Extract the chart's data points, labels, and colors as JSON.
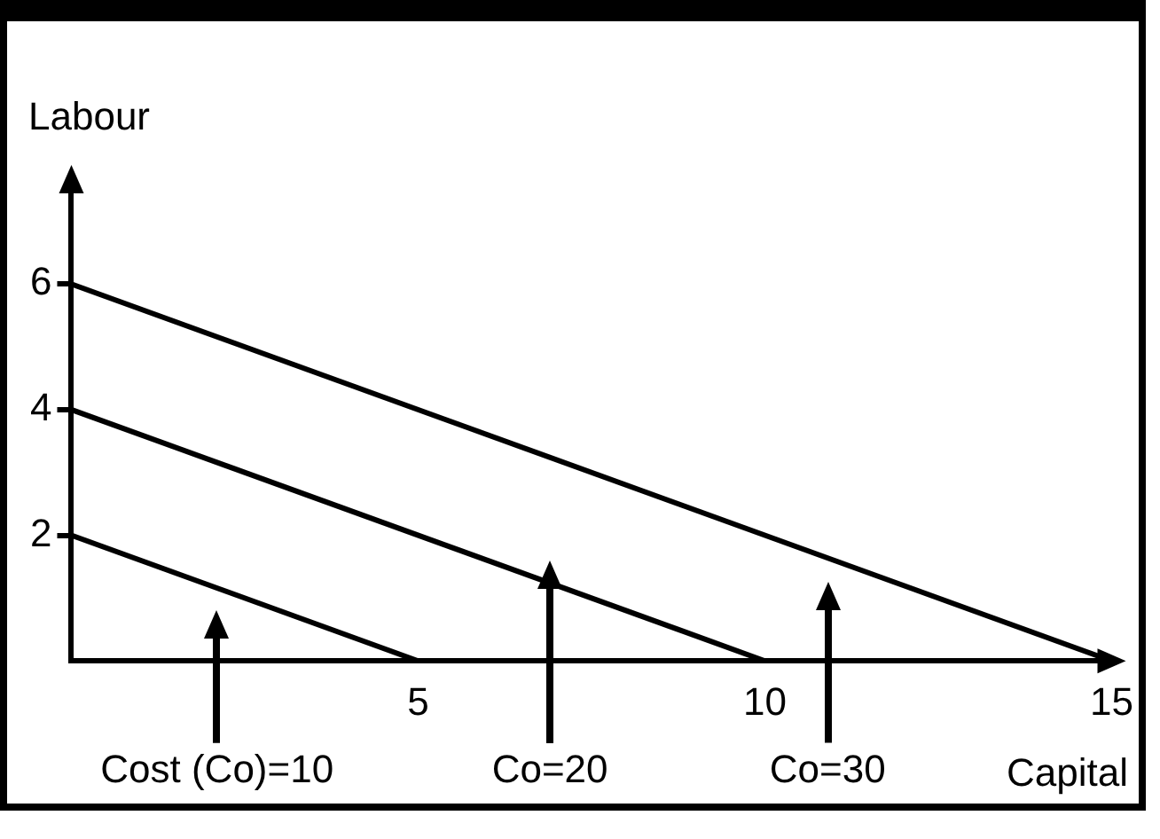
{
  "chart_data": {
    "type": "line",
    "xlabel": "Capital",
    "ylabel": "Labour",
    "xlim": [
      0,
      15
    ],
    "ylim": [
      0,
      7.5
    ],
    "xticks": [
      5,
      10,
      15
    ],
    "yticks": [
      2,
      4,
      6
    ],
    "grid": false,
    "legend": false,
    "line_style": "solid",
    "series": [
      {
        "color": "#000000",
        "x": [
          0,
          5
        ],
        "values": [
          2,
          0
        ]
      },
      {
        "color": "#000000",
        "x": [
          0,
          10
        ],
        "values": [
          4,
          0
        ]
      },
      {
        "color": "#000000",
        "x": [
          0,
          15
        ],
        "values": [
          6,
          0
        ]
      }
    ],
    "annotations": [
      "Cost (Co)=10",
      "Co=20",
      "Co=30"
    ]
  }
}
